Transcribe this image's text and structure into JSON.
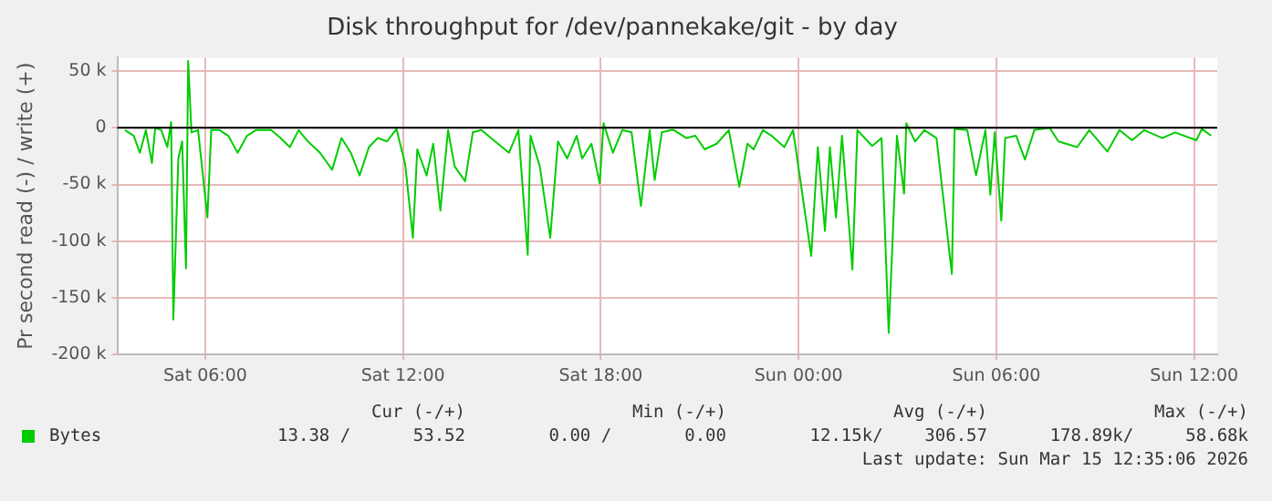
{
  "chart_data": {
    "type": "line",
    "title": "Disk throughput for /dev/pannekake/git - by day",
    "ylabel": "Pr second read (-) / write (+)",
    "x": [
      "2026-03-14T03:34",
      "2026-03-14T03:50",
      "2026-03-14T04:01",
      "2026-03-14T04:12",
      "2026-03-14T04:23",
      "2026-03-14T04:29",
      "2026-03-14T04:40",
      "2026-03-14T04:51",
      "2026-03-14T04:58",
      "2026-03-14T05:02",
      "2026-03-14T05:11",
      "2026-03-14T05:18",
      "2026-03-14T05:25",
      "2026-03-14T05:29",
      "2026-03-14T05:35",
      "2026-03-14T05:47",
      "2026-03-14T06:04",
      "2026-03-14T06:11",
      "2026-03-14T06:26",
      "2026-03-14T06:42",
      "2026-03-14T06:59",
      "2026-03-14T07:16",
      "2026-03-14T07:32",
      "2026-03-14T08:00",
      "2026-03-14T08:17",
      "2026-03-14T08:34",
      "2026-03-14T08:50",
      "2026-03-14T09:07",
      "2026-03-14T09:29",
      "2026-03-14T09:51",
      "2026-03-14T10:08",
      "2026-03-14T10:25",
      "2026-03-14T10:41",
      "2026-03-14T10:58",
      "2026-03-14T11:14",
      "2026-03-14T11:31",
      "2026-03-14T11:48",
      "2026-03-14T12:04",
      "2026-03-14T12:18",
      "2026-03-14T12:26",
      "2026-03-14T12:43",
      "2026-03-14T12:55",
      "2026-03-14T13:08",
      "2026-03-14T13:22",
      "2026-03-14T13:34",
      "2026-03-14T13:53",
      "2026-03-14T14:07",
      "2026-03-14T14:23",
      "2026-03-14T14:40",
      "2026-03-14T15:13",
      "2026-03-14T15:30",
      "2026-03-14T15:47",
      "2026-03-14T15:52",
      "2026-03-14T16:09",
      "2026-03-14T16:28",
      "2026-03-14T16:42",
      "2026-03-14T16:59",
      "2026-03-14T17:16",
      "2026-03-14T17:26",
      "2026-03-14T17:43",
      "2026-03-14T17:58",
      "2026-03-14T18:05",
      "2026-03-14T18:22",
      "2026-03-14T18:39",
      "2026-03-14T18:56",
      "2026-03-14T19:13",
      "2026-03-14T19:29",
      "2026-03-14T19:38",
      "2026-03-14T19:51",
      "2026-03-14T20:08",
      "2026-03-14T20:13",
      "2026-03-14T20:36",
      "2026-03-14T20:52",
      "2026-03-14T21:09",
      "2026-03-14T21:31",
      "2026-03-14T21:53",
      "2026-03-14T22:12",
      "2026-03-14T22:27",
      "2026-03-14T22:38",
      "2026-03-14T22:55",
      "2026-03-14T23:11",
      "2026-03-14T23:34",
      "2026-03-14T23:50",
      "2026-03-15T00:07",
      "2026-03-15T00:23",
      "2026-03-15T00:35",
      "2026-03-15T00:48",
      "2026-03-15T00:57",
      "2026-03-15T01:08",
      "2026-03-15T01:19",
      "2026-03-15T01:38",
      "2026-03-15T01:47",
      "2026-03-15T02:14",
      "2026-03-15T02:31",
      "2026-03-15T02:44",
      "2026-03-15T02:59",
      "2026-03-15T03:12",
      "2026-03-15T03:16",
      "2026-03-15T03:32",
      "2026-03-15T03:49",
      "2026-03-15T04:11",
      "2026-03-15T04:39",
      "2026-03-15T04:44",
      "2026-03-15T05:07",
      "2026-03-15T05:23",
      "2026-03-15T05:40",
      "2026-03-15T05:49",
      "2026-03-15T05:57",
      "2026-03-15T06:09",
      "2026-03-15T06:16",
      "2026-03-15T06:36",
      "2026-03-15T06:52",
      "2026-03-15T07:09",
      "2026-03-15T07:37",
      "2026-03-15T07:53",
      "2026-03-15T08:27",
      "2026-03-15T08:49",
      "2026-03-15T09:22",
      "2026-03-15T09:44",
      "2026-03-15T10:07",
      "2026-03-15T10:29",
      "2026-03-15T11:02",
      "2026-03-15T11:25",
      "2026-03-15T12:04",
      "2026-03-15T12:14",
      "2026-03-15T12:31"
    ],
    "xlim": [
      "2026-03-14T03:20",
      "2026-03-15T12:42"
    ],
    "xticks": [
      {
        "value": "2026-03-14T06:00",
        "label": "Sat 06:00"
      },
      {
        "value": "2026-03-14T12:00",
        "label": "Sat 12:00"
      },
      {
        "value": "2026-03-14T18:00",
        "label": "Sat 18:00"
      },
      {
        "value": "2026-03-15T00:00",
        "label": "Sun 00:00"
      },
      {
        "value": "2026-03-15T06:00",
        "label": "Sun 06:00"
      },
      {
        "value": "2026-03-15T12:00",
        "label": "Sun 12:00"
      }
    ],
    "ylim": [
      -200000,
      62000
    ],
    "yticks": [
      {
        "value": -200000,
        "label": "-200 k"
      },
      {
        "value": -150000,
        "label": "-150 k"
      },
      {
        "value": -100000,
        "label": "-100 k"
      },
      {
        "value": -50000,
        "label": "-50 k"
      },
      0,
      {
        "value": 50000,
        "label": "50 k"
      }
    ],
    "series": [
      {
        "name": "Bytes",
        "color": "#00cc00",
        "values": [
          -2000,
          -7000,
          -22000,
          -2000,
          -31000,
          0,
          -2000,
          -17000,
          5000,
          -169000,
          -27000,
          -12000,
          -124000,
          59000,
          -4000,
          -2000,
          -79000,
          -2000,
          -2000,
          -7000,
          -22000,
          -7000,
          -2000,
          -2000,
          -9000,
          -17000,
          -2000,
          -12000,
          -22000,
          -37000,
          -9000,
          -22000,
          -42000,
          -17000,
          -9000,
          -12000,
          -1000,
          -32000,
          -97000,
          -19000,
          -42000,
          -14000,
          -73000,
          -2000,
          -34000,
          -47000,
          -4000,
          -2000,
          -9000,
          -22000,
          -2000,
          -112000,
          -7000,
          -34000,
          -97000,
          -12000,
          -27000,
          -7000,
          -27000,
          -14000,
          -49000,
          4000,
          -22000,
          -2000,
          -4000,
          -69000,
          -2000,
          -46000,
          -4000,
          -2000,
          -2000,
          -9000,
          -7000,
          -19000,
          -14000,
          -2000,
          -52000,
          -14000,
          -19000,
          -2000,
          -7000,
          -17000,
          -2000,
          -59000,
          -113000,
          -17000,
          -91000,
          -17000,
          -79000,
          -7000,
          -125000,
          -2000,
          -16000,
          -9000,
          -181000,
          -7000,
          -58000,
          4000,
          -12000,
          -2000,
          -9000,
          -129000,
          -1000,
          -2000,
          -42000,
          -2000,
          -59000,
          -4000,
          -82000,
          -9000,
          -7000,
          -28000,
          -2000,
          0,
          -12000,
          -17000,
          -2000,
          -21000,
          -2000,
          -11000,
          -2000,
          -9000,
          -4000,
          -11000,
          -1000,
          -7000
        ]
      }
    ],
    "grid": true,
    "legend": "bottom left",
    "marker": "none",
    "line_style": "solid",
    "annotations": [
      "Cur (-/+)",
      "Min (-/+)",
      "Avg (-/+)",
      "Max (-/+)",
      "13.38 /      53.52",
      "0.00 /       0.00",
      "12.15k/    306.57",
      "178.89k/     58.68k",
      "Last update: Sun Mar 15 12:35:06 2026"
    ]
  }
}
